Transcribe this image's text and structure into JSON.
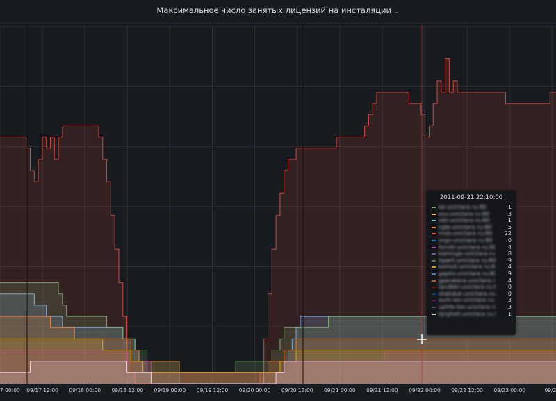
{
  "panel": {
    "title": "Максимальное число занятых лицензий на инсталяции",
    "menu_icon": "chevron-down-icon"
  },
  "chart_data": {
    "type": "area",
    "x_tick_labels": [
      "7 00:00",
      "09/17 12:00",
      "09/18 00:00",
      "09/18 12:00",
      "09/19 00:00",
      "09/19 12:00",
      "09/20 00:00",
      "09/20 12:00",
      "09/21 00:00",
      "09/21 12:00",
      "09/22 00:00",
      "09/22 12:00",
      "09/23 00:00",
      "09/23"
    ],
    "grid": true,
    "hover_time_label": "2021-09-21 22:10:00",
    "series": [
      {
        "color": "#e24d42",
        "values": [
          22,
          22,
          22,
          22,
          22,
          22,
          22,
          21,
          19,
          18,
          20,
          22,
          21,
          22,
          20,
          22,
          23,
          23,
          23,
          23,
          23,
          23,
          23,
          23,
          23,
          22,
          20,
          18,
          15,
          12,
          9,
          6,
          3,
          1,
          0,
          0,
          0,
          0,
          0,
          0,
          0,
          0,
          0,
          0,
          0,
          0,
          0,
          0,
          0,
          0,
          0,
          0,
          0,
          0,
          0,
          0,
          0,
          0,
          0,
          0,
          0,
          0,
          0,
          0,
          0,
          1,
          4,
          8,
          12,
          15,
          17,
          19,
          20,
          20,
          21,
          21,
          21,
          21,
          21,
          21,
          21,
          21,
          21,
          21,
          22,
          22,
          22,
          22,
          22,
          22,
          22,
          23,
          24,
          25,
          26,
          26,
          26,
          26,
          26,
          26,
          26,
          26,
          25,
          25,
          25,
          24,
          22,
          23,
          25,
          27,
          26,
          29,
          26,
          27,
          26,
          26,
          26,
          26,
          26,
          26,
          26,
          26,
          26,
          26,
          26,
          26,
          25,
          25,
          25,
          25,
          25,
          25,
          25,
          25,
          25,
          25,
          25,
          26,
          26
        ]
      },
      {
        "color": "#8ab8ff",
        "values": [
          8,
          8,
          8,
          8,
          8,
          8,
          8,
          8,
          8,
          7,
          7,
          7,
          6,
          6,
          6,
          6,
          5,
          5,
          5,
          5,
          5,
          5,
          5,
          5,
          5,
          5,
          5,
          5,
          5,
          5,
          5,
          4,
          4,
          4,
          3,
          2,
          2,
          1,
          1,
          1,
          1,
          1,
          1,
          1,
          1,
          0,
          0,
          0,
          0,
          0,
          0,
          0,
          0,
          0,
          0,
          0,
          0,
          0,
          0,
          0,
          0,
          0,
          0,
          0,
          0,
          0,
          1,
          1,
          1,
          1,
          1,
          2,
          3,
          4,
          5,
          6,
          6,
          6,
          6,
          6,
          6,
          6,
          6,
          6,
          6,
          6,
          6,
          6,
          6,
          6,
          6,
          6,
          6,
          6,
          6,
          6,
          6,
          6,
          6,
          6,
          6,
          6,
          6,
          6,
          6,
          6,
          6,
          6,
          6,
          6,
          6,
          6,
          6,
          6,
          6,
          6,
          6,
          6,
          6,
          6,
          6,
          6,
          6,
          6,
          6,
          6,
          6,
          6,
          6,
          6,
          6,
          6,
          6,
          6,
          6,
          6,
          6,
          6,
          6
        ]
      },
      {
        "color": "#7eb26d",
        "values": [
          9,
          9,
          9,
          9,
          9,
          9,
          9,
          9,
          9,
          9,
          9,
          9,
          9,
          9,
          9,
          8,
          7,
          6,
          6,
          6,
          6,
          6,
          6,
          6,
          6,
          6,
          6,
          5,
          5,
          5,
          5,
          4,
          4,
          4,
          3,
          3,
          3,
          2,
          2,
          2,
          2,
          2,
          2,
          2,
          2,
          1,
          1,
          1,
          1,
          1,
          1,
          1,
          1,
          1,
          1,
          1,
          1,
          1,
          1,
          2,
          2,
          2,
          2,
          2,
          2,
          2,
          2,
          2,
          3,
          3,
          4,
          5,
          5,
          5,
          5,
          5,
          5,
          5,
          5,
          5,
          5,
          5,
          6,
          6,
          6,
          6,
          6,
          6,
          6,
          6,
          6,
          6,
          6,
          6,
          6,
          6,
          6,
          6,
          6,
          6,
          6,
          6,
          6,
          6,
          6,
          6,
          6,
          6,
          6,
          6,
          6,
          6,
          6,
          6,
          6,
          6,
          6,
          6,
          6,
          6,
          6,
          6,
          6,
          6,
          6,
          6,
          6,
          6,
          6,
          6,
          6,
          6,
          6,
          6,
          6,
          6,
          6,
          6,
          6
        ]
      },
      {
        "color": "#ef843c",
        "values": [
          6,
          6,
          6,
          6,
          6,
          6,
          6,
          6,
          6,
          6,
          6,
          6,
          6,
          5,
          5,
          5,
          5,
          5,
          5,
          4,
          4,
          4,
          4,
          4,
          4,
          4,
          4,
          4,
          4,
          4,
          4,
          4,
          4,
          3,
          3,
          2,
          2,
          2,
          2,
          2,
          2,
          2,
          2,
          2,
          2,
          1,
          1,
          1,
          1,
          1,
          1,
          1,
          1,
          1,
          1,
          1,
          1,
          1,
          1,
          1,
          1,
          1,
          1,
          1,
          1,
          1,
          1,
          2,
          2,
          2,
          2,
          3,
          3,
          3,
          4,
          4,
          4,
          4,
          4,
          4,
          4,
          4,
          4,
          4,
          4,
          4,
          4,
          4,
          4,
          4,
          4,
          4,
          4,
          4,
          4,
          4,
          4,
          4,
          4,
          4,
          4,
          4,
          4,
          4,
          4,
          4,
          4,
          4,
          4,
          4,
          4,
          4,
          4,
          4,
          4,
          4,
          4,
          4,
          4,
          4,
          4,
          4,
          4,
          4,
          4,
          4,
          4,
          4,
          4,
          4,
          4,
          4,
          4,
          4,
          4,
          4,
          4,
          4,
          4
        ]
      },
      {
        "color": "#ba43a9",
        "values": [
          3,
          3,
          3,
          3,
          3,
          3,
          3,
          3,
          3,
          3,
          3,
          3,
          3,
          3,
          3,
          3,
          3,
          3,
          3,
          3,
          3,
          3,
          3,
          3,
          3,
          3,
          3,
          3,
          3,
          3,
          3,
          3,
          2,
          2,
          2,
          2,
          2,
          2,
          1,
          1,
          1,
          1,
          1,
          1,
          1,
          1,
          1,
          1,
          1,
          1,
          1,
          1,
          1,
          1,
          1,
          1,
          1,
          1,
          1,
          1,
          1,
          1,
          1,
          1,
          1,
          1,
          1,
          1,
          1,
          1,
          1,
          2,
          2,
          2,
          2,
          2,
          2,
          2,
          2,
          2,
          2,
          2,
          2,
          2,
          2,
          2,
          2,
          2,
          2,
          2,
          2,
          2,
          2,
          2,
          2,
          2,
          3,
          3,
          3,
          3,
          3,
          3,
          3,
          3,
          3,
          3,
          3,
          3,
          3,
          3,
          3,
          3,
          3,
          3,
          3,
          3,
          3,
          3,
          3,
          3,
          3,
          3,
          3,
          3,
          3,
          3,
          3,
          3,
          3,
          3,
          3,
          3,
          3,
          3,
          3,
          3,
          3,
          3,
          3
        ]
      },
      {
        "color": "#e5ac0e",
        "values": [
          4,
          4,
          4,
          4,
          4,
          4,
          4,
          4,
          4,
          4,
          4,
          4,
          4,
          4,
          4,
          4,
          4,
          4,
          4,
          4,
          4,
          4,
          4,
          4,
          4,
          4,
          3,
          3,
          3,
          3,
          3,
          3,
          3,
          2,
          2,
          2,
          1,
          1,
          1,
          1,
          1,
          1,
          1,
          1,
          1,
          1,
          1,
          1,
          1,
          1,
          1,
          1,
          1,
          1,
          1,
          1,
          1,
          1,
          1,
          1,
          1,
          1,
          1,
          1,
          1,
          1,
          1,
          1,
          1,
          1,
          2,
          2,
          2,
          2,
          3,
          3,
          3,
          3,
          3,
          3,
          3,
          3,
          3,
          3,
          3,
          3,
          3,
          3,
          3,
          3,
          3,
          3,
          3,
          3,
          3,
          3,
          3,
          3,
          3,
          3,
          3,
          3,
          3,
          3,
          3,
          3,
          3,
          3,
          3,
          3,
          3,
          3,
          3,
          3,
          3,
          3,
          3,
          3,
          3,
          3,
          3,
          3,
          3,
          3,
          3,
          3,
          3,
          3,
          3,
          3,
          3,
          3,
          3,
          3,
          3,
          3,
          3,
          3,
          3
        ]
      },
      {
        "color": "#f9d9f9",
        "values": [
          1,
          1,
          1,
          1,
          1,
          1,
          1,
          1,
          2,
          2,
          2,
          2,
          2,
          2,
          2,
          2,
          2,
          2,
          2,
          2,
          2,
          2,
          2,
          2,
          2,
          2,
          2,
          2,
          2,
          2,
          2,
          2,
          1,
          1,
          1,
          1,
          1,
          1,
          0,
          0,
          0,
          0,
          0,
          0,
          0,
          0,
          0,
          0,
          0,
          0,
          0,
          0,
          0,
          0,
          0,
          0,
          0,
          0,
          0,
          0,
          0,
          0,
          0,
          0,
          0,
          0,
          0,
          0,
          0,
          1,
          1,
          2,
          2,
          2,
          2,
          2,
          2,
          2,
          2,
          2,
          2,
          2,
          2,
          2,
          2,
          2,
          2,
          2,
          2,
          2,
          2,
          2,
          2,
          2,
          2,
          2,
          2,
          2,
          2,
          2,
          2,
          2,
          2,
          2,
          2,
          2,
          2,
          2,
          2,
          2,
          2,
          2,
          2,
          2,
          2,
          2,
          2,
          2,
          2,
          2,
          2,
          2,
          2,
          2,
          2,
          2,
          2,
          2,
          2,
          2,
          2,
          2,
          2,
          2,
          2,
          2,
          2,
          2,
          2
        ]
      }
    ],
    "tooltip": {
      "items": [
        {
          "name": "lal-unictara ru:80",
          "value": "1",
          "color": "#7eb26d"
        },
        {
          "name": "ssu-unictara ru:80",
          "value": "3",
          "color": "#eab839"
        },
        {
          "name": "sibi-unictara ru:80",
          "value": "1",
          "color": "#6ed0e0"
        },
        {
          "name": "cgle-unictara ru:80",
          "value": "5",
          "color": "#ef843c"
        },
        {
          "name": "mob-unictara ru:80",
          "value": "22",
          "color": "#e24d42"
        },
        {
          "name": "orgo-unictara ru:80",
          "value": "0",
          "color": "#1f78c1"
        },
        {
          "name": "forvitr-unictara ru:80",
          "value": "4",
          "color": "#ba43a9"
        },
        {
          "name": "kaminge-unictara ru:80",
          "value": "8",
          "color": "#705da0"
        },
        {
          "name": "lspert-unictara ru:80",
          "value": "9",
          "color": "#508642"
        },
        {
          "name": "komsit-unictara ru:80",
          "value": "4",
          "color": "#cca300"
        },
        {
          "name": "gaphs-unictara ru:80",
          "value": "9",
          "color": "#447ebc"
        },
        {
          "name": "gperatara-unictara ru:80",
          "value": "4",
          "color": "#c15c17"
        },
        {
          "name": "landbkr-unictara ru:80",
          "value": "0",
          "color": "#890f02"
        },
        {
          "name": "shahduk-unictara ru:80",
          "value": "0",
          "color": "#0a437c"
        },
        {
          "name": "aurk-lev-unictara ru:80",
          "value": "3",
          "color": "#6d1f62"
        },
        {
          "name": "uphfe-tes-unictara ru:80",
          "value": "3",
          "color": "#584477"
        },
        {
          "name": "tprghall-unictara ru:80",
          "value": "1",
          "color": "#b7dbab"
        }
      ]
    }
  }
}
